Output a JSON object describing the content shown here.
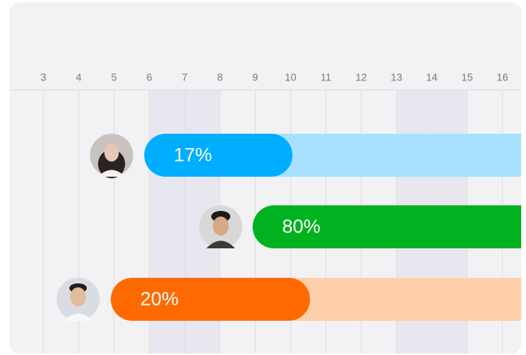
{
  "timeline": {
    "days": [
      3,
      4,
      5,
      6,
      7,
      8,
      9,
      10,
      11,
      12,
      13,
      14,
      15,
      16
    ]
  },
  "tasks": [
    {
      "progress": "17%"
    },
    {
      "progress": "80%"
    },
    {
      "progress": "20%"
    }
  ]
}
